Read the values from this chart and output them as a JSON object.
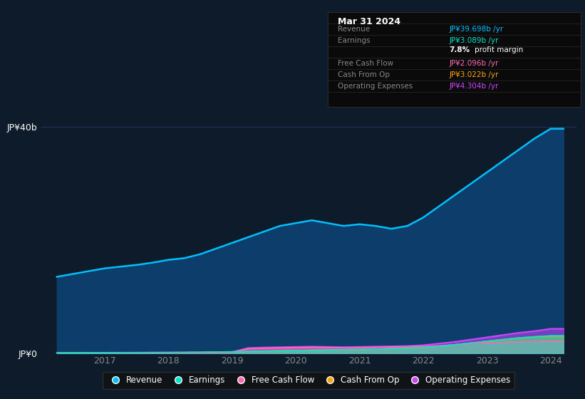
{
  "bg_color": "#0d1b2a",
  "plot_bg_color": "#0d1b2a",
  "years": [
    2016.25,
    2016.5,
    2016.75,
    2017.0,
    2017.25,
    2017.5,
    2017.75,
    2018.0,
    2018.25,
    2018.5,
    2018.75,
    2019.0,
    2019.25,
    2019.5,
    2019.75,
    2020.0,
    2020.25,
    2020.5,
    2020.75,
    2021.0,
    2021.25,
    2021.5,
    2021.75,
    2022.0,
    2022.25,
    2022.5,
    2022.75,
    2023.0,
    2023.25,
    2023.5,
    2023.75,
    2024.0,
    2024.2
  ],
  "revenue": [
    13.5,
    14.0,
    14.5,
    15.0,
    15.3,
    15.6,
    16.0,
    16.5,
    16.8,
    17.5,
    18.5,
    19.5,
    20.5,
    21.5,
    22.5,
    23.0,
    23.5,
    23.0,
    22.5,
    22.8,
    22.5,
    22.0,
    22.5,
    24.0,
    26.0,
    28.0,
    30.0,
    32.0,
    34.0,
    36.0,
    38.0,
    39.7,
    39.698
  ],
  "earnings": [
    0.05,
    0.06,
    0.07,
    0.08,
    0.09,
    0.1,
    0.11,
    0.12,
    0.13,
    0.15,
    0.18,
    0.22,
    0.3,
    0.35,
    0.4,
    0.45,
    0.5,
    0.55,
    0.6,
    0.65,
    0.7,
    0.8,
    0.9,
    1.0,
    1.2,
    1.5,
    1.8,
    2.1,
    2.4,
    2.7,
    2.9,
    3.089,
    3.089
  ],
  "free_cash_flow": [
    0.02,
    0.02,
    0.03,
    0.03,
    0.04,
    0.04,
    0.05,
    0.06,
    0.07,
    0.08,
    0.1,
    0.12,
    0.8,
    0.9,
    0.95,
    1.0,
    1.05,
    1.0,
    0.95,
    1.0,
    1.05,
    1.1,
    1.15,
    1.2,
    1.3,
    1.5,
    1.7,
    1.8,
    1.9,
    2.0,
    2.05,
    2.096,
    2.096
  ],
  "cash_from_op": [
    0.03,
    0.04,
    0.05,
    0.06,
    0.07,
    0.08,
    0.09,
    0.1,
    0.12,
    0.15,
    0.2,
    0.25,
    0.3,
    0.35,
    0.4,
    0.45,
    0.5,
    0.55,
    0.6,
    0.65,
    0.7,
    0.8,
    0.9,
    1.0,
    1.2,
    1.5,
    1.8,
    2.1,
    2.4,
    2.7,
    2.9,
    3.022,
    3.022
  ],
  "op_expenses": [
    0.04,
    0.05,
    0.06,
    0.07,
    0.08,
    0.09,
    0.1,
    0.11,
    0.12,
    0.14,
    0.17,
    0.2,
    0.9,
    1.0,
    1.05,
    1.1,
    1.15,
    1.1,
    1.05,
    1.1,
    1.15,
    1.2,
    1.25,
    1.4,
    1.7,
    2.0,
    2.4,
    2.8,
    3.2,
    3.6,
    3.9,
    4.304,
    4.304
  ],
  "revenue_color": "#00bfff",
  "revenue_fill": "#0d3d6b",
  "earnings_color": "#00e5cc",
  "free_cash_flow_color": "#ff69b4",
  "cash_from_op_color": "#ffa500",
  "op_expenses_color": "#cc44ff",
  "grid_color": "#1e3a5f",
  "text_color": "#888888",
  "xlabel_ticks": [
    2017,
    2018,
    2019,
    2020,
    2021,
    2022,
    2023,
    2024
  ],
  "ylim": [
    0,
    42
  ],
  "xlim": [
    2016.0,
    2024.4
  ],
  "tooltip_title": "Mar 31 2024",
  "tooltip_rows": [
    {
      "label": "Revenue",
      "value": "JP¥39.698b /yr",
      "value_color": "#00bfff"
    },
    {
      "label": "Earnings",
      "value": "JP¥3.089b /yr",
      "value_color": "#00e5cc"
    },
    {
      "label": "",
      "value": "7.8% profit margin",
      "value_color": "white"
    },
    {
      "label": "Free Cash Flow",
      "value": "JP¥2.096b /yr",
      "value_color": "#ff69b4"
    },
    {
      "label": "Cash From Op",
      "value": "JP¥3.022b /yr",
      "value_color": "#ffa500"
    },
    {
      "label": "Operating Expenses",
      "value": "JP¥4.304b /yr",
      "value_color": "#cc44ff"
    }
  ],
  "legend_items": [
    {
      "label": "Revenue",
      "color": "#00bfff"
    },
    {
      "label": "Earnings",
      "color": "#00e5cc"
    },
    {
      "label": "Free Cash Flow",
      "color": "#ff69b4"
    },
    {
      "label": "Cash From Op",
      "color": "#ffa500"
    },
    {
      "label": "Operating Expenses",
      "color": "#cc44ff"
    }
  ]
}
